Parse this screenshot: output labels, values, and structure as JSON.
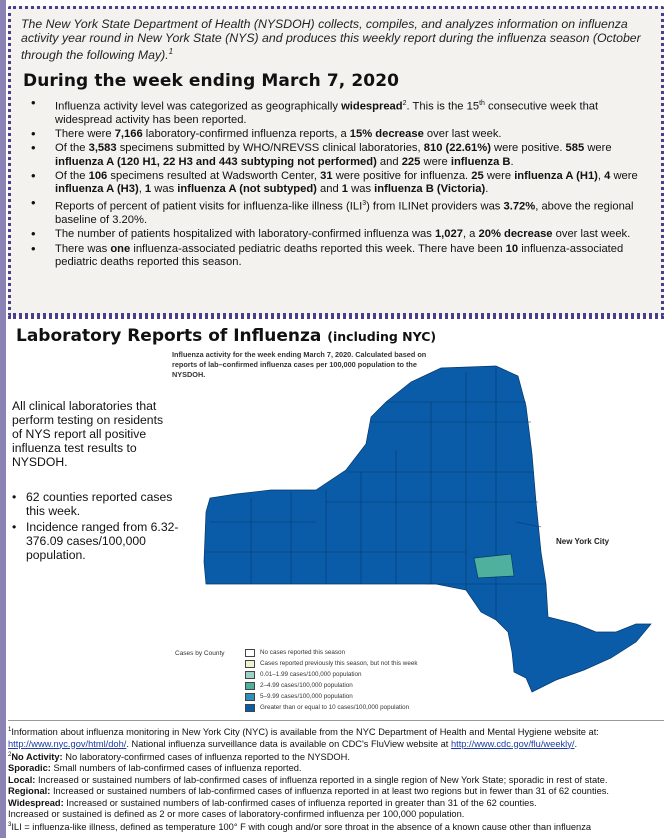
{
  "intro": {
    "text": "The New York State Department of Health (NYSDOH) collects, compiles, and analyzes information on influenza activity year round in New York State (NYS) and produces this weekly report during the influenza season (October through the following May).",
    "footnote_mark": "1"
  },
  "week_heading": "During the week ending March 7, 2020",
  "bullets": {
    "b1": {
      "t1": "Influenza activity level was categorized as geographically ",
      "bold1": "widespread",
      "sup1": "2",
      "t2": ".  This is the 15",
      "sup2": "th",
      "t3": " consecutive week that widespread activity has been reported."
    },
    "b2": {
      "t1": "There were ",
      "bold1": "7,166",
      "t2": " laboratory-confirmed influenza reports, a ",
      "bold2": "15% decrease",
      "t3": " over last week."
    },
    "b3": {
      "t1": "Of the ",
      "bold1": "3,583",
      "t2": " specimens submitted by WHO/NREVSS clinical laboratories, ",
      "bold2": "810 (22.61%)",
      "t3": " were positive.  ",
      "bold3": "585",
      "t4": " were ",
      "bold4": "influenza A (120 H1, 22 H3 and 443 subtyping not performed)",
      "t5": " and ",
      "bold5": "225",
      "t6": " were ",
      "bold6": "influenza B",
      "t7": "."
    },
    "b4": {
      "t1": "Of the ",
      "bold1": "106",
      "t2": " specimens resulted at Wadsworth Center, ",
      "bold2": "31",
      "t3": " were positive for influenza. ",
      "bold3": "25",
      "t4": " were ",
      "bold4": "influenza A (H1)",
      "t5": ", ",
      "bold5": "4",
      "t6": " were ",
      "bold6": "influenza A (H3)",
      "t7": ", ",
      "bold7": "1",
      "t8": " was ",
      "bold8": "influenza A (not subtyped)",
      "t9": " and ",
      "bold9": "1",
      "t10": " was ",
      "bold10": "influenza B (Victoria)",
      "t11": "."
    },
    "b5": {
      "t1": "Reports of percent of patient visits for influenza-like illness (ILI",
      "sup1": "3",
      "t2": ") from ILINet providers was ",
      "bold1": "3.72%",
      "t3": ", above the regional baseline of 3.20%."
    },
    "b6": {
      "t1": "The number of patients hospitalized with laboratory-confirmed influenza was ",
      "bold1": "1,027",
      "t2": ", a ",
      "bold2": "20% decrease",
      "t3": " over last week."
    },
    "b7": {
      "t1": "There was ",
      "bold1": "one",
      "t2": " influenza-associated pediatric deaths reported this week.  There have been ",
      "bold2": "10",
      "t3": " influenza-associated pediatric deaths reported this season."
    }
  },
  "lab_section": {
    "title": "Laboratory Reports of Influenza",
    "title_suffix": "(including NYC)",
    "map_caption": "Influenza activity for the week ending March 7, 2020. Calculated based on reports of lab–confirmed influenza cases per 100,000 population to the NYSDOH.",
    "left_text": "All clinical laboratories that perform testing on residents of NYS report all positive influenza test results to NYSDOH.",
    "left_bullets": [
      "62 counties reported cases this week.",
      "Incidence ranged from 6.32-376.09 cases/100,000 population."
    ],
    "nyc_label": "New York City"
  },
  "legend": {
    "label": "Cases by County",
    "items": [
      {
        "text": "No cases reported this season",
        "color": "#ffffff"
      },
      {
        "text": "Cases reported previously this season, but not this week",
        "color": "#eef2cf"
      },
      {
        "text": "0.01–1.99 cases/100,000 population",
        "color": "#9fd2c6"
      },
      {
        "text": "2–4.99 cases/100,000 population",
        "color": "#4fb09e"
      },
      {
        "text": "5–9.99 cases/100,000 population",
        "color": "#2e8fb8"
      },
      {
        "text": "Greater than or equal to 10 cases/100,000 population",
        "color": "#0a5ca8"
      }
    ]
  },
  "colors": {
    "map_fill": "#0a5ca8",
    "map_highlight": "#4fb09e",
    "border": "#4b3f8c"
  },
  "footnotes": {
    "f1": {
      "sup": "1",
      "t1": "Information about influenza monitoring in New York City (NYC) is available from the NYC Department of Health and Mental Hygiene website at: ",
      "link1": "http://www.nyc.gov/html/doh/",
      "t2": ". National influenza surveillance data is available on CDC's FluView website at ",
      "link2": "http://www.cdc.gov/flu/weekly/",
      "t3": "."
    },
    "f2": {
      "sup": "2",
      "bold": "No Activity:",
      "text": " No laboratory-confirmed cases of influenza reported to the NYSDOH."
    },
    "f3": {
      "bold": "Sporadic:",
      "text": " Small numbers of lab-confirmed cases of influenza reported."
    },
    "f4": {
      "bold": "Local:",
      "text": " Increased or sustained numbers of lab-confirmed cases of influenza reported in a single region of New York State; sporadic in rest of state."
    },
    "f5": {
      "bold": "Regional:",
      "text": " Increased or sustained numbers of lab-confirmed cases of influenza reported in at least two regions but in fewer than 31 of 62 counties."
    },
    "f6": {
      "bold": "Widespread:",
      "text": " Increased or sustained numbers of lab-confirmed cases of influenza reported in greater than 31 of the 62 counties."
    },
    "f7": {
      "text": "Increased or sustained is defined as 2 or more cases of laboratory-confirmed influenza per 100,000 population."
    },
    "f8": {
      "sup": "3",
      "text": "ILI = influenza-like illness, defined as temperature 100° F with cough and/or sore throat in the absence of a known cause other than influenza"
    }
  }
}
